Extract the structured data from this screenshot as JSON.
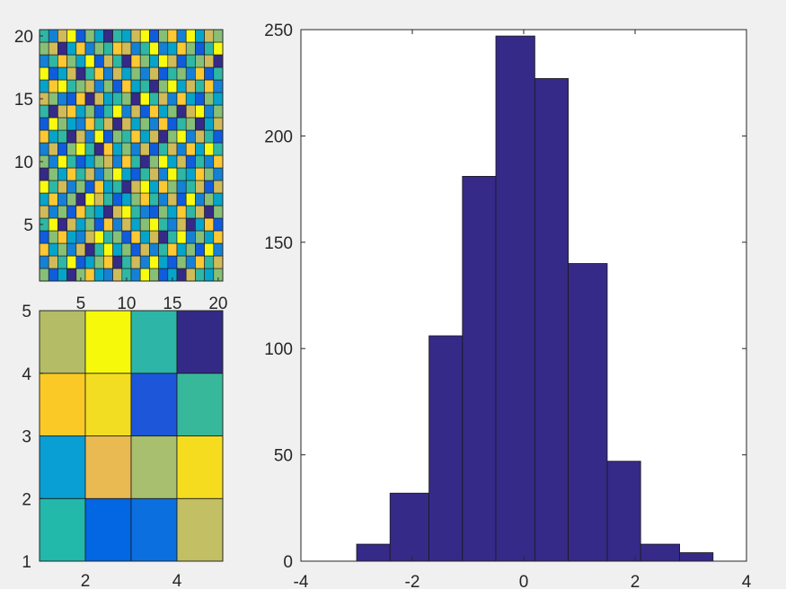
{
  "chart_data": [
    {
      "type": "heatmap",
      "xlim": [
        0.5,
        20.5
      ],
      "ylim": [
        0.5,
        20.5
      ],
      "xticks": [
        5,
        10,
        15,
        20
      ],
      "yticks": [
        5,
        10,
        15,
        20
      ],
      "grid": false,
      "colormap": [
        "#352a87",
        "#0f5cdd",
        "#1481d6",
        "#06a4ca",
        "#2eb7a4",
        "#87bf77",
        "#d1bb59",
        "#fec832",
        "#f9fb0e"
      ],
      "values": [
        [
          5,
          1,
          3,
          0,
          5,
          7,
          3,
          2,
          6,
          4,
          2,
          8,
          5,
          1,
          3,
          0,
          6,
          4,
          3,
          5
        ],
        [
          2,
          6,
          4,
          8,
          1,
          3,
          5,
          7,
          0,
          4,
          6,
          2,
          8,
          3,
          1,
          5,
          2,
          7,
          4,
          6
        ],
        [
          7,
          3,
          5,
          2,
          6,
          0,
          4,
          8,
          3,
          5,
          1,
          6,
          2,
          4,
          7,
          3,
          5,
          1,
          8,
          2
        ],
        [
          1,
          5,
          7,
          3,
          2,
          6,
          8,
          4,
          5,
          1,
          7,
          3,
          6,
          0,
          4,
          8,
          2,
          5,
          3,
          7
        ],
        [
          4,
          8,
          0,
          6,
          3,
          5,
          1,
          7,
          2,
          6,
          3,
          5,
          8,
          4,
          2,
          6,
          0,
          3,
          7,
          1
        ],
        [
          6,
          2,
          5,
          1,
          7,
          4,
          3,
          0,
          6,
          8,
          4,
          2,
          1,
          5,
          3,
          7,
          4,
          6,
          0,
          5
        ],
        [
          3,
          7,
          2,
          5,
          0,
          8,
          6,
          4,
          1,
          3,
          5,
          7,
          4,
          2,
          6,
          1,
          8,
          2,
          5,
          3
        ],
        [
          8,
          4,
          6,
          2,
          5,
          1,
          7,
          3,
          4,
          0,
          6,
          8,
          3,
          7,
          5,
          2,
          4,
          6,
          1,
          6
        ],
        [
          0,
          5,
          3,
          7,
          4,
          6,
          2,
          5,
          8,
          3,
          1,
          4,
          6,
          2,
          8,
          4,
          3,
          7,
          5,
          2
        ],
        [
          5,
          2,
          8,
          4,
          1,
          3,
          5,
          6,
          2,
          7,
          4,
          0,
          5,
          8,
          3,
          6,
          1,
          4,
          2,
          7
        ],
        [
          2,
          6,
          1,
          5,
          8,
          4,
          0,
          7,
          3,
          5,
          2,
          6,
          1,
          4,
          6,
          2,
          7,
          3,
          8,
          4
        ],
        [
          7,
          3,
          4,
          0,
          6,
          2,
          8,
          1,
          5,
          4,
          7,
          3,
          6,
          0,
          5,
          8,
          2,
          6,
          4,
          1
        ],
        [
          1,
          8,
          5,
          3,
          2,
          7,
          4,
          6,
          0,
          6,
          3,
          5,
          2,
          7,
          1,
          4,
          5,
          0,
          3,
          6
        ],
        [
          4,
          0,
          6,
          7,
          3,
          5,
          1,
          4,
          8,
          2,
          6,
          1,
          7,
          3,
          5,
          0,
          6,
          8,
          2,
          5
        ],
        [
          6,
          5,
          2,
          1,
          7,
          0,
          6,
          3,
          4,
          5,
          0,
          8,
          4,
          6,
          2,
          7,
          3,
          1,
          5,
          3
        ],
        [
          3,
          7,
          8,
          4,
          5,
          6,
          2,
          5,
          1,
          7,
          3,
          4,
          0,
          5,
          8,
          3,
          6,
          4,
          7,
          2
        ],
        [
          8,
          1,
          3,
          6,
          0,
          4,
          7,
          2,
          6,
          3,
          5,
          2,
          6,
          1,
          4,
          5,
          2,
          7,
          1,
          4
        ],
        [
          2,
          4,
          7,
          5,
          3,
          8,
          1,
          6,
          4,
          0,
          7,
          5,
          3,
          8,
          6,
          1,
          4,
          5,
          6,
          0
        ],
        [
          5,
          6,
          0,
          3,
          7,
          2,
          5,
          4,
          7,
          6,
          2,
          4,
          8,
          2,
          3,
          7,
          5,
          1,
          4,
          8
        ],
        [
          4,
          2,
          6,
          8,
          1,
          5,
          3,
          0,
          4,
          3,
          6,
          8,
          1,
          5,
          7,
          2,
          8,
          3,
          6,
          5
        ]
      ]
    },
    {
      "type": "heatmap",
      "xlim": [
        1,
        5
      ],
      "ylim": [
        1,
        5
      ],
      "xticks": [
        2,
        4
      ],
      "yticks": [
        1,
        2,
        3,
        4,
        5
      ],
      "grid": false,
      "cells": [
        [
          "#22b8aa",
          "#0366e2",
          "#0b6fe0",
          "#c2bf65"
        ],
        [
          "#099fd4",
          "#e9b952",
          "#a7bf6e",
          "#f5dc1f"
        ],
        [
          "#fbc926",
          "#f2dd22",
          "#1e56d9",
          "#37b89a"
        ],
        [
          "#b4bc66",
          "#f7f90b",
          "#2db6a8",
          "#332a87"
        ]
      ]
    },
    {
      "type": "bar",
      "subtype": "histogram",
      "bin_edges": [
        -3.0,
        -2.4,
        -1.7,
        -1.1,
        -0.5,
        0.2,
        0.8,
        1.5,
        2.1,
        2.8,
        3.4
      ],
      "values": [
        8,
        32,
        106,
        181,
        247,
        227,
        140,
        47,
        8,
        4
      ],
      "xlim": [
        -4,
        4
      ],
      "ylim": [
        0,
        250
      ],
      "xticks": [
        -4,
        -2,
        0,
        2,
        4
      ],
      "yticks": [
        0,
        50,
        100,
        150,
        200,
        250
      ],
      "grid": false,
      "bar_color": "#352a87",
      "edge_color": "#1a1a1a"
    }
  ]
}
